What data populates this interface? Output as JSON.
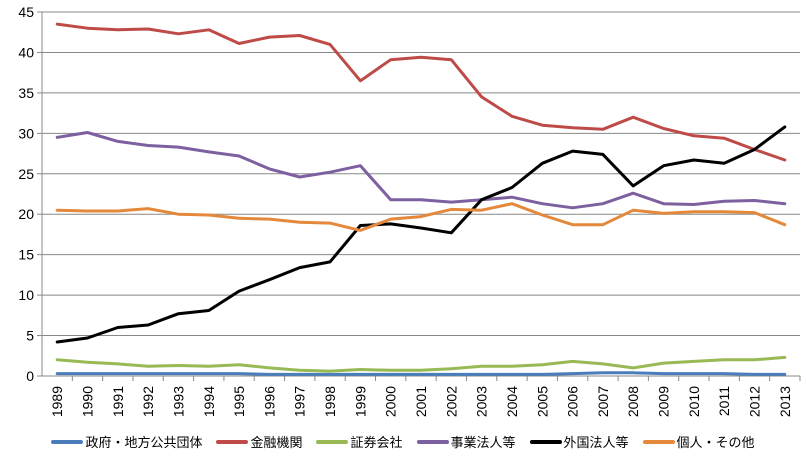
{
  "chart_data": {
    "type": "line",
    "title": "",
    "xlabel": "",
    "ylabel": "",
    "ylim": [
      0,
      45
    ],
    "yticks": [
      0,
      5,
      10,
      15,
      20,
      25,
      30,
      35,
      40,
      45
    ],
    "grid": true,
    "legend_position": "bottom",
    "categories": [
      "1989",
      "1990",
      "1991",
      "1992",
      "1993",
      "1994",
      "1995",
      "1996",
      "1997",
      "1998",
      "1999",
      "2000",
      "2001",
      "2002",
      "2003",
      "2004",
      "2005",
      "2006",
      "2007",
      "2008",
      "2009",
      "2010",
      "2011",
      "2012",
      "2013"
    ],
    "series": [
      {
        "name": "政府・地方公共団体",
        "color": "#4a7ebb",
        "values": [
          0.3,
          0.3,
          0.3,
          0.3,
          0.3,
          0.3,
          0.3,
          0.2,
          0.2,
          0.2,
          0.2,
          0.2,
          0.2,
          0.2,
          0.2,
          0.2,
          0.2,
          0.3,
          0.4,
          0.4,
          0.3,
          0.3,
          0.3,
          0.2,
          0.2
        ]
      },
      {
        "name": "金融機関",
        "color": "#be4b48",
        "values": [
          43.5,
          43.0,
          42.8,
          42.9,
          42.3,
          42.8,
          41.1,
          41.9,
          42.1,
          41.0,
          36.5,
          39.1,
          39.4,
          39.1,
          34.5,
          32.1,
          31.0,
          30.7,
          30.5,
          32.0,
          30.6,
          29.7,
          29.4,
          28.0,
          26.7
        ]
      },
      {
        "name": "証券会社",
        "color": "#98b954",
        "values": [
          2.0,
          1.7,
          1.5,
          1.2,
          1.3,
          1.2,
          1.4,
          1.0,
          0.7,
          0.6,
          0.8,
          0.7,
          0.7,
          0.9,
          1.2,
          1.2,
          1.4,
          1.8,
          1.5,
          1.0,
          1.6,
          1.8,
          2.0,
          2.0,
          2.3
        ]
      },
      {
        "name": "事業法人等",
        "color": "#7d60a0",
        "values": [
          29.5,
          30.1,
          29.0,
          28.5,
          28.3,
          27.7,
          27.2,
          25.6,
          24.6,
          25.2,
          26.0,
          21.8,
          21.8,
          21.5,
          21.8,
          22.1,
          21.3,
          20.8,
          21.3,
          22.6,
          21.3,
          21.2,
          21.6,
          21.7,
          21.3
        ]
      },
      {
        "name": "外国法人等",
        "color": "#000000",
        "values": [
          4.2,
          4.7,
          6.0,
          6.3,
          7.7,
          8.1,
          10.5,
          11.9,
          13.4,
          14.1,
          18.6,
          18.8,
          18.3,
          17.7,
          21.8,
          23.3,
          26.3,
          27.8,
          27.4,
          23.5,
          26.0,
          26.7,
          26.3,
          28.0,
          30.8
        ]
      },
      {
        "name": "個人・その他",
        "color": "#e4893b",
        "values": [
          20.5,
          20.4,
          20.4,
          20.7,
          20.0,
          19.9,
          19.5,
          19.4,
          19.0,
          18.9,
          18.0,
          19.4,
          19.7,
          20.6,
          20.5,
          21.3,
          19.9,
          18.7,
          18.7,
          20.5,
          20.1,
          20.3,
          20.3,
          20.2,
          18.7
        ]
      }
    ]
  }
}
